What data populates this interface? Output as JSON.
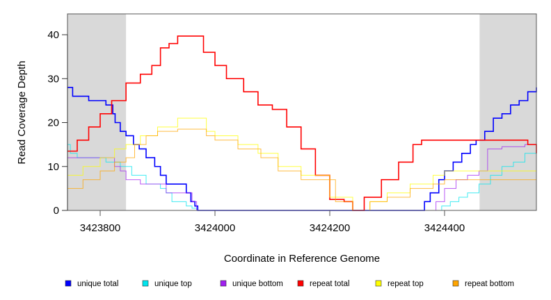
{
  "chart_data": {
    "type": "line",
    "title": "",
    "xlabel": "Coordinate in Reference Genome",
    "ylabel": "Read Coverage Depth",
    "xlim": [
      3423743,
      3424560
    ],
    "ylim": [
      0,
      44
    ],
    "xticks": [
      3423800,
      3424000,
      3424200,
      3424400
    ],
    "xtick_labels": [
      "3423800",
      "3424000",
      "3424200",
      "3424400"
    ],
    "yticks": [
      0,
      10,
      20,
      30,
      40
    ],
    "ytick_labels": [
      "0",
      "10",
      "20",
      "30",
      "40"
    ],
    "shaded_regions": [
      [
        3423743,
        3423845
      ],
      [
        3424461,
        3424560
      ]
    ],
    "shade_color": "#d9d9d9",
    "legend_position": "bottom",
    "series": [
      {
        "name": "unique total",
        "color": "#0000ff",
        "x": [
          3423743,
          3423752,
          3423780,
          3423810,
          3423822,
          3423826,
          3423835,
          3423845,
          3423858,
          3423868,
          3423880,
          3423895,
          3423905,
          3423915,
          3423950,
          3423958,
          3423965,
          3423970,
          3424355,
          3424365,
          3424375,
          3424390,
          3424400,
          3424415,
          3424430,
          3424445,
          3424455,
          3424470,
          3424485,
          3424500,
          3424515,
          3424530,
          3424545,
          3424560
        ],
        "y": [
          28,
          26,
          25,
          24,
          22,
          20,
          18,
          17,
          15,
          14,
          12,
          10,
          8,
          6,
          4,
          2,
          1,
          0,
          0,
          2,
          4,
          7,
          9,
          11,
          13,
          15,
          16,
          18,
          21,
          22,
          24,
          25,
          27,
          28
        ]
      },
      {
        "name": "unique top",
        "color": "#00e5ee",
        "x": [
          3423743,
          3423748,
          3423760,
          3423810,
          3423835,
          3423855,
          3423880,
          3423905,
          3423915,
          3423925,
          3423950,
          3423960,
          3423968,
          3424380,
          3424395,
          3424410,
          3424425,
          3424440,
          3424460,
          3424480,
          3424500,
          3424520,
          3424540,
          3424560
        ],
        "y": [
          15,
          13,
          12,
          11,
          10,
          8,
          6,
          5,
          4,
          2,
          1,
          0.5,
          0,
          0,
          1,
          2,
          3,
          4,
          6,
          8,
          10,
          11,
          13,
          15
        ]
      },
      {
        "name": "unique bottom",
        "color": "#a020f0",
        "x": [
          3423743,
          3423810,
          3423825,
          3423835,
          3423845,
          3423870,
          3423905,
          3423915,
          3423945,
          3423960,
          3423968,
          3424370,
          3424385,
          3424400,
          3424420,
          3424440,
          3424460,
          3424475,
          3424500,
          3424540,
          3424560
        ],
        "y": [
          12,
          12,
          10,
          9,
          7,
          6,
          6,
          4,
          4,
          2,
          0,
          0,
          2,
          5,
          7,
          8,
          9,
          14,
          14.5,
          15,
          15
        ]
      },
      {
        "name": "repeat total",
        "color": "#ff0000",
        "x": [
          3423743,
          3423760,
          3423780,
          3423800,
          3423820,
          3423845,
          3423870,
          3423890,
          3423905,
          3423920,
          3423935,
          3423970,
          3423980,
          3424000,
          3424020,
          3424050,
          3424075,
          3424100,
          3424125,
          3424150,
          3424175,
          3424200,
          3424225,
          3424240,
          3424260,
          3424290,
          3424320,
          3424345,
          3424360,
          3424530,
          3424545,
          3424560
        ],
        "y": [
          13.5,
          16,
          19,
          22,
          25,
          29,
          31,
          33,
          37,
          38,
          39.7,
          39.7,
          36,
          33,
          30,
          27,
          24,
          23,
          19,
          14,
          8,
          2.5,
          2,
          0,
          3,
          7,
          11,
          15,
          16,
          16,
          15,
          13
        ]
      },
      {
        "name": "repeat top",
        "color": "#ffff00",
        "x": [
          3423743,
          3423770,
          3423800,
          3423825,
          3423845,
          3423870,
          3423900,
          3423935,
          3423970,
          3423985,
          3424000,
          3424040,
          3424075,
          3424110,
          3424150,
          3424200,
          3424240,
          3424270,
          3424300,
          3424340,
          3424380,
          3424400,
          3424530,
          3424560
        ],
        "y": [
          8,
          10,
          12,
          14,
          15,
          17,
          19,
          21,
          21,
          18,
          17,
          15,
          13,
          10,
          8,
          3,
          0,
          2,
          4,
          6,
          8,
          9,
          9,
          7
        ]
      },
      {
        "name": "repeat bottom",
        "color": "#ffa500",
        "x": [
          3423743,
          3423770,
          3423800,
          3423825,
          3423845,
          3423860,
          3423880,
          3423900,
          3423935,
          3423970,
          3423985,
          3424000,
          3424040,
          3424080,
          3424110,
          3424150,
          3424210,
          3424240,
          3424270,
          3424300,
          3424340,
          3424380,
          3424400,
          3424530,
          3424560
        ],
        "y": [
          5,
          7,
          9,
          11,
          12,
          15,
          17,
          18,
          18.5,
          18.5,
          17,
          16,
          14,
          12,
          9,
          7,
          2,
          0,
          2,
          3,
          5,
          6,
          7,
          7,
          6
        ]
      }
    ]
  }
}
